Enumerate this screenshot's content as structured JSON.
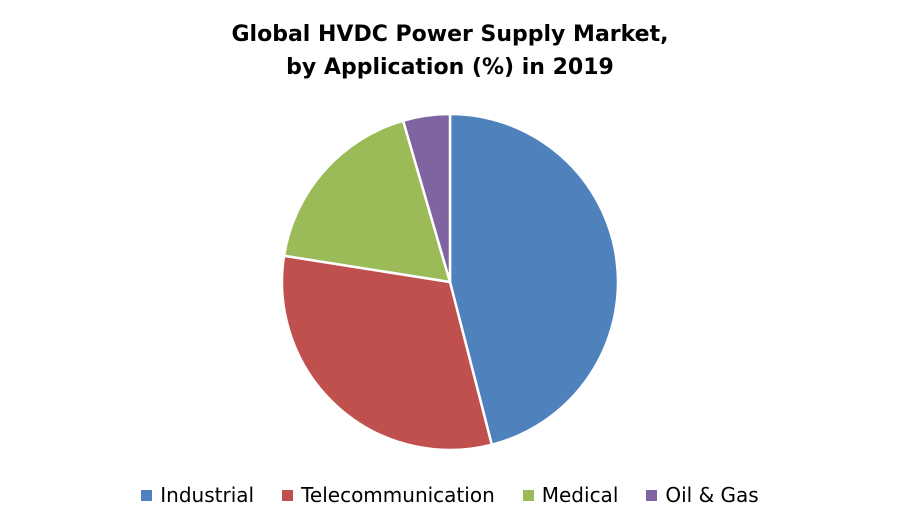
{
  "chart_data": {
    "type": "pie",
    "title": "Global HVDC Power Supply Market,",
    "subtitle": "by Application (%) in 2019",
    "categories": [
      "Industrial",
      "Telecommunication",
      "Medical",
      "Oil & Gas"
    ],
    "values": [
      46,
      31.5,
      18,
      4.5
    ],
    "colors": [
      "#4F81BD",
      "#C0504D",
      "#9BBB59",
      "#8064A2"
    ],
    "legend_position": "bottom",
    "start_angle": "12 o'clock, clockwise"
  }
}
